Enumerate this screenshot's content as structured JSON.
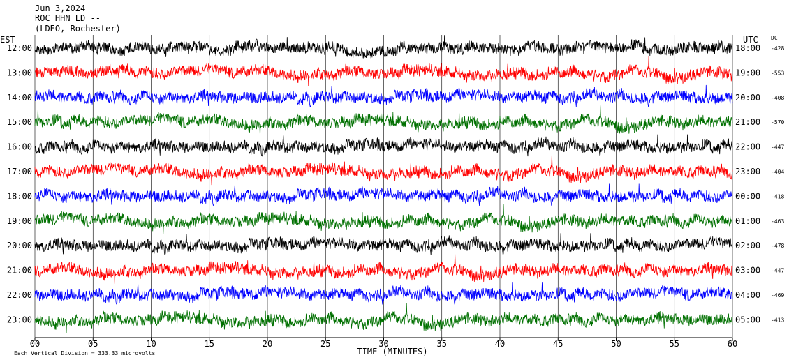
{
  "header": {
    "line1": "Jun 3,2024",
    "line2": "ROC HHN LD --",
    "line3": "(LDEO, Rochester)"
  },
  "left_axis_label": "EST",
  "right_axis_label": "UTC",
  "dc_label": "DC",
  "footer": {
    "scale_note": "Each Vertical Division =  333.33 microvolts"
  },
  "colors": {
    "black": "#000000",
    "red": "#ff0000",
    "blue": "#0000ff",
    "green": "#007000",
    "grid": "#000000"
  },
  "chart_data": {
    "type": "line",
    "title": "",
    "xlabel": "TIME (MINUTES)",
    "ylabel": "",
    "xlim": [
      0,
      60
    ],
    "x_ticks": [
      "00",
      "05",
      "10",
      "15",
      "20",
      "25",
      "30",
      "35",
      "40",
      "45",
      "50",
      "55",
      "60"
    ],
    "rows": [
      {
        "est": "12:00",
        "utc": "18:00",
        "dc": "-428",
        "color": "black"
      },
      {
        "est": "13:00",
        "utc": "19:00",
        "dc": "-553",
        "color": "red"
      },
      {
        "est": "14:00",
        "utc": "20:00",
        "dc": "-408",
        "color": "blue"
      },
      {
        "est": "15:00",
        "utc": "21:00",
        "dc": "-570",
        "color": "green"
      },
      {
        "est": "16:00",
        "utc": "22:00",
        "dc": "-447",
        "color": "black"
      },
      {
        "est": "17:00",
        "utc": "23:00",
        "dc": "-404",
        "color": "red"
      },
      {
        "est": "18:00",
        "utc": "00:00",
        "dc": "-418",
        "color": "blue"
      },
      {
        "est": "19:00",
        "utc": "01:00",
        "dc": "-463",
        "color": "green"
      },
      {
        "est": "20:00",
        "utc": "02:00",
        "dc": "-478",
        "color": "black"
      },
      {
        "est": "21:00",
        "utc": "03:00",
        "dc": "-447",
        "color": "red"
      },
      {
        "est": "22:00",
        "utc": "04:00",
        "dc": "-469",
        "color": "blue"
      },
      {
        "est": "23:00",
        "utc": "05:00",
        "dc": "-413",
        "color": "green"
      }
    ]
  }
}
